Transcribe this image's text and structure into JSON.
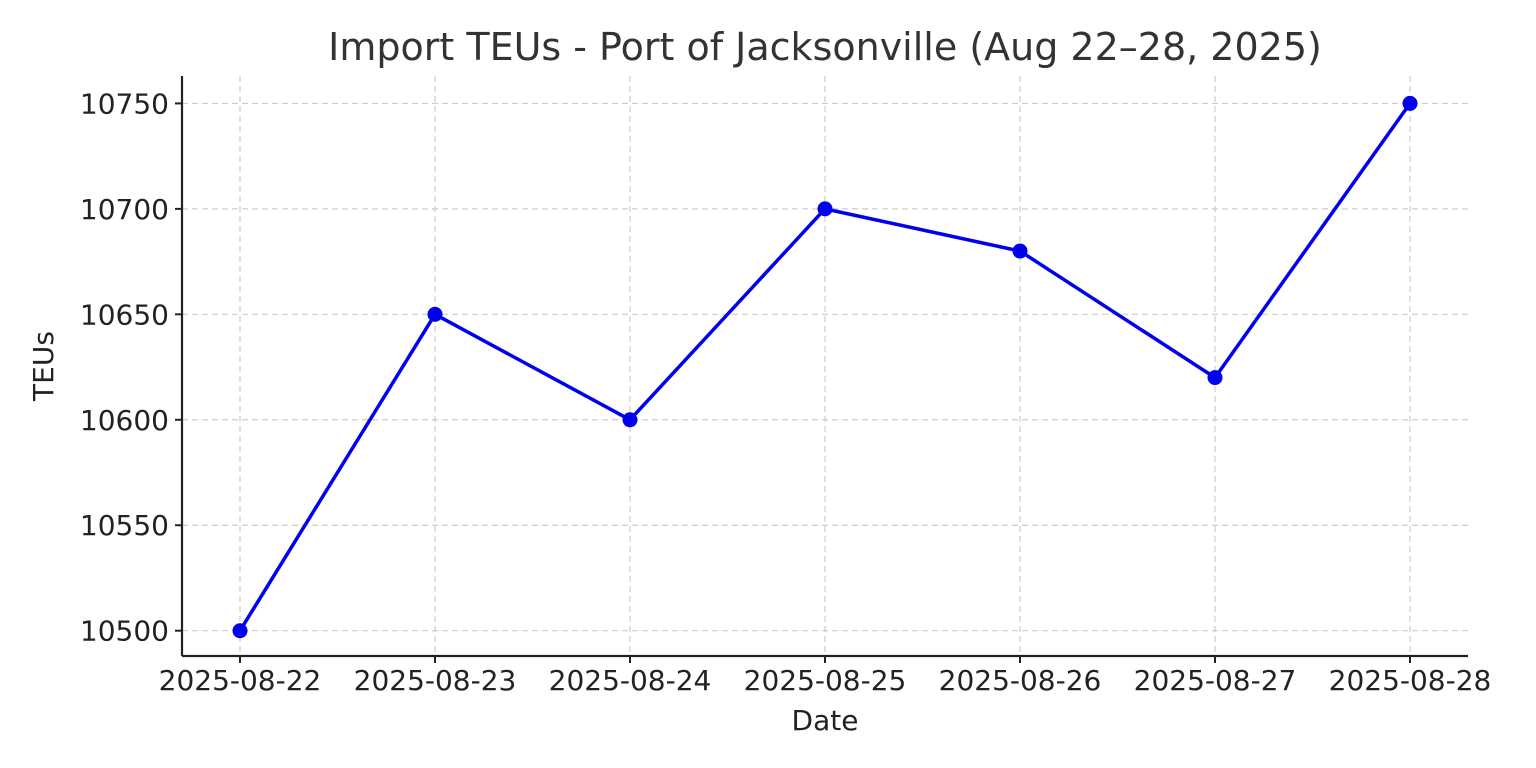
{
  "chart_data": {
    "type": "line",
    "title": "Import TEUs - Port of Jacksonville (Aug 22–28, 2025)",
    "xlabel": "Date",
    "ylabel": "TEUs",
    "x": [
      "2025-08-22",
      "2025-08-23",
      "2025-08-24",
      "2025-08-25",
      "2025-08-26",
      "2025-08-27",
      "2025-08-28"
    ],
    "series": [
      {
        "values": [
          10500,
          10650,
          10600,
          10700,
          10680,
          10620,
          10750
        ],
        "color": "#0000ee"
      }
    ],
    "yticks": [
      10500,
      10550,
      10600,
      10650,
      10700,
      10750
    ],
    "ylim": [
      10488,
      10763
    ],
    "grid": true,
    "marker": "circle"
  }
}
